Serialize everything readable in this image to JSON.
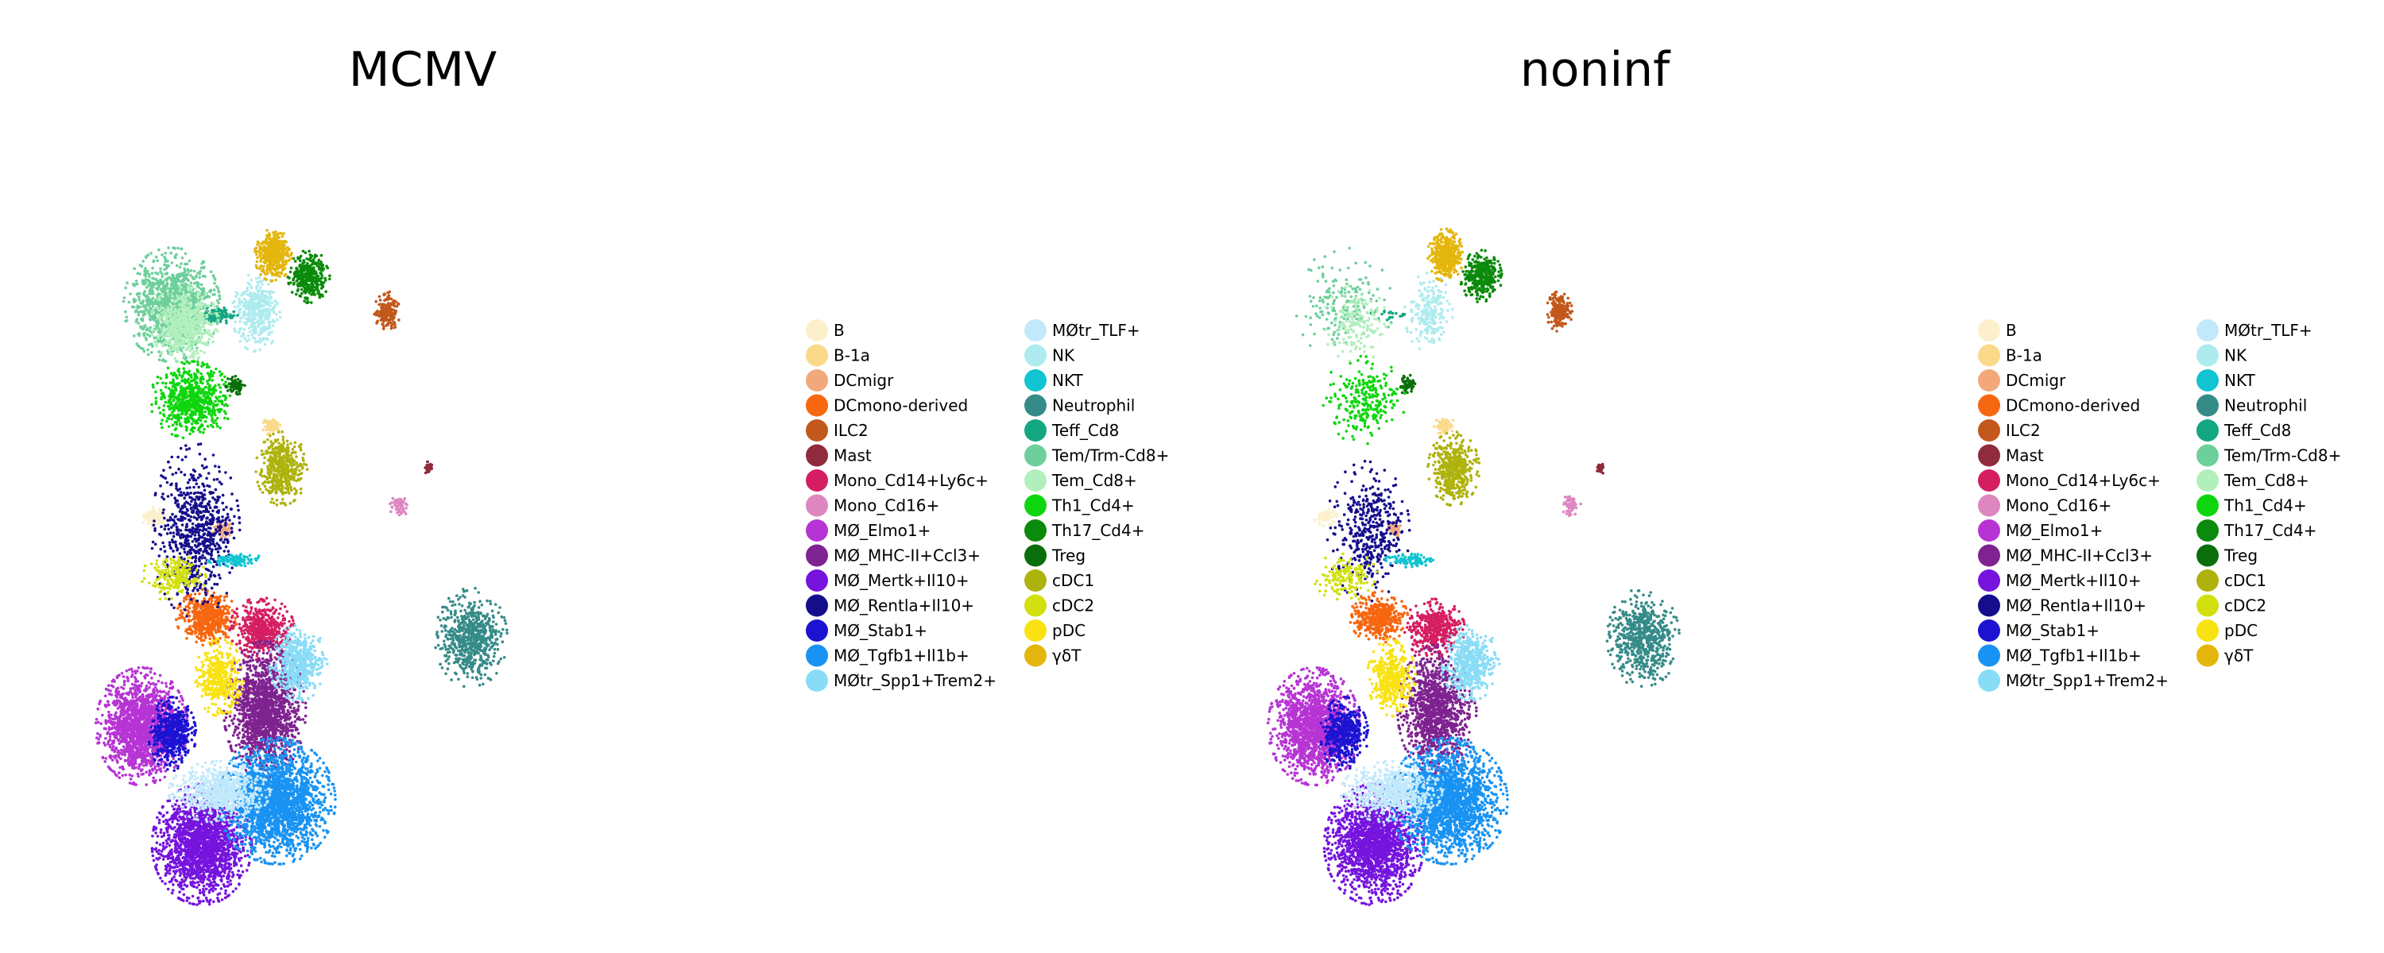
{
  "chart_data": {
    "type": "scatter",
    "panels": [
      {
        "title": "MCMV",
        "clusters": [
          {
            "name": "B",
            "cx": 0.108,
            "cy": 0.512,
            "rx": 0.018,
            "ry": 0.012,
            "n": 90
          },
          {
            "name": "B-1a",
            "cx": 0.276,
            "cy": 0.392,
            "rx": 0.013,
            "ry": 0.011,
            "n": 70
          },
          {
            "name": "DCmigr",
            "cx": 0.204,
            "cy": 0.528,
            "rx": 0.012,
            "ry": 0.01,
            "n": 80
          },
          {
            "name": "DCmono-derived",
            "cx": 0.182,
            "cy": 0.643,
            "rx": 0.038,
            "ry": 0.032,
            "n": 560
          },
          {
            "name": "ILC2",
            "cx": 0.44,
            "cy": 0.242,
            "rx": 0.016,
            "ry": 0.023,
            "n": 200
          },
          {
            "name": "Mast",
            "cx": 0.499,
            "cy": 0.447,
            "rx": 0.006,
            "ry": 0.007,
            "n": 30
          },
          {
            "name": "Mono_Cd14+Ly6c+",
            "cx": 0.261,
            "cy": 0.658,
            "rx": 0.04,
            "ry": 0.036,
            "n": 520
          },
          {
            "name": "Mono_Cd16+",
            "cx": 0.457,
            "cy": 0.496,
            "rx": 0.012,
            "ry": 0.014,
            "n": 60
          },
          {
            "name": "MØ_Elmo1+",
            "cx": 0.089,
            "cy": 0.786,
            "rx": 0.057,
            "ry": 0.067,
            "n": 1700
          },
          {
            "name": "MØ_MHC-II+Ccl3+",
            "cx": 0.265,
            "cy": 0.764,
            "rx": 0.051,
            "ry": 0.078,
            "n": 1500
          },
          {
            "name": "MØ_Mertk+Il10+",
            "cx": 0.175,
            "cy": 0.941,
            "rx": 0.062,
            "ry": 0.069,
            "n": 1900
          },
          {
            "name": "MØ_Rentla+Il10+",
            "cx": 0.166,
            "cy": 0.53,
            "rx": 0.055,
            "ry": 0.1,
            "n": 700
          },
          {
            "name": "MØ_Stab1+",
            "cx": 0.132,
            "cy": 0.796,
            "rx": 0.03,
            "ry": 0.042,
            "n": 520
          },
          {
            "name": "MØ_Tgfb1+Il1b+",
            "cx": 0.282,
            "cy": 0.884,
            "rx": 0.073,
            "ry": 0.072,
            "n": 2100
          },
          {
            "name": "MØtr_Spp1+Trem2+",
            "cx": 0.313,
            "cy": 0.703,
            "rx": 0.036,
            "ry": 0.043,
            "n": 520
          },
          {
            "name": "MØtr_TLF+",
            "cx": 0.2,
            "cy": 0.872,
            "rx": 0.063,
            "ry": 0.035,
            "n": 700
          },
          {
            "name": "NK",
            "cx": 0.253,
            "cy": 0.243,
            "rx": 0.03,
            "ry": 0.045,
            "n": 380
          },
          {
            "name": "NKT",
            "cx": 0.224,
            "cy": 0.568,
            "rx": 0.035,
            "ry": 0.008,
            "n": 110
          },
          {
            "name": "Neutrophil",
            "cx": 0.56,
            "cy": 0.67,
            "rx": 0.045,
            "ry": 0.057,
            "n": 650
          },
          {
            "name": "Teff_Cd8",
            "cx": 0.194,
            "cy": 0.247,
            "rx": 0.028,
            "ry": 0.01,
            "n": 110
          },
          {
            "name": "Tem/Trm-Cd8+",
            "cx": 0.132,
            "cy": 0.233,
            "rx": 0.06,
            "ry": 0.065,
            "n": 1100
          },
          {
            "name": "Tem_Cd8+",
            "cx": 0.15,
            "cy": 0.258,
            "rx": 0.042,
            "ry": 0.044,
            "n": 600
          },
          {
            "name": "Th1_Cd4+",
            "cx": 0.16,
            "cy": 0.358,
            "rx": 0.052,
            "ry": 0.044,
            "n": 700
          },
          {
            "name": "Th17_Cd4+",
            "cx": 0.328,
            "cy": 0.196,
            "rx": 0.026,
            "ry": 0.03,
            "n": 360
          },
          {
            "name": "Treg",
            "cx": 0.224,
            "cy": 0.338,
            "rx": 0.013,
            "ry": 0.011,
            "n": 80
          },
          {
            "name": "cDC1",
            "cx": 0.289,
            "cy": 0.448,
            "rx": 0.032,
            "ry": 0.042,
            "n": 480
          },
          {
            "name": "cDC2",
            "cx": 0.135,
            "cy": 0.59,
            "rx": 0.04,
            "ry": 0.028,
            "n": 200
          },
          {
            "name": "pDC",
            "cx": 0.2,
            "cy": 0.722,
            "rx": 0.03,
            "ry": 0.044,
            "n": 420
          },
          {
            "name": "γδT",
            "cx": 0.277,
            "cy": 0.168,
            "rx": 0.023,
            "ry": 0.03,
            "n": 420
          }
        ]
      },
      {
        "title": "noninf",
        "clusters": [
          {
            "name": "B",
            "cx": 0.108,
            "cy": 0.512,
            "rx": 0.016,
            "ry": 0.011,
            "n": 60
          },
          {
            "name": "B-1a",
            "cx": 0.276,
            "cy": 0.392,
            "rx": 0.013,
            "ry": 0.011,
            "n": 70
          },
          {
            "name": "DCmigr",
            "cx": 0.204,
            "cy": 0.528,
            "rx": 0.01,
            "ry": 0.009,
            "n": 60
          },
          {
            "name": "DCmono-derived",
            "cx": 0.182,
            "cy": 0.643,
            "rx": 0.036,
            "ry": 0.03,
            "n": 440
          },
          {
            "name": "ILC2",
            "cx": 0.44,
            "cy": 0.242,
            "rx": 0.016,
            "ry": 0.023,
            "n": 200
          },
          {
            "name": "Mast",
            "cx": 0.499,
            "cy": 0.447,
            "rx": 0.006,
            "ry": 0.007,
            "n": 30
          },
          {
            "name": "Mono_Cd14+Ly6c+",
            "cx": 0.261,
            "cy": 0.658,
            "rx": 0.038,
            "ry": 0.034,
            "n": 440
          },
          {
            "name": "Mono_Cd16+",
            "cx": 0.457,
            "cy": 0.496,
            "rx": 0.012,
            "ry": 0.014,
            "n": 60
          },
          {
            "name": "MØ_Elmo1+",
            "cx": 0.089,
            "cy": 0.786,
            "rx": 0.057,
            "ry": 0.067,
            "n": 1600
          },
          {
            "name": "MØ_MHC-II+Ccl3+",
            "cx": 0.265,
            "cy": 0.764,
            "rx": 0.049,
            "ry": 0.074,
            "n": 1200
          },
          {
            "name": "MØ_Mertk+Il10+",
            "cx": 0.175,
            "cy": 0.941,
            "rx": 0.062,
            "ry": 0.069,
            "n": 1800
          },
          {
            "name": "MØ_Rentla+Il10+",
            "cx": 0.166,
            "cy": 0.53,
            "rx": 0.052,
            "ry": 0.08,
            "n": 420
          },
          {
            "name": "MØ_Stab1+",
            "cx": 0.132,
            "cy": 0.796,
            "rx": 0.03,
            "ry": 0.042,
            "n": 480
          },
          {
            "name": "MØ_Tgfb1+Il1b+",
            "cx": 0.282,
            "cy": 0.884,
            "rx": 0.073,
            "ry": 0.072,
            "n": 2000
          },
          {
            "name": "MØtr_Spp1+Trem2+",
            "cx": 0.313,
            "cy": 0.703,
            "rx": 0.036,
            "ry": 0.043,
            "n": 500
          },
          {
            "name": "MØtr_TLF+",
            "cx": 0.2,
            "cy": 0.872,
            "rx": 0.063,
            "ry": 0.035,
            "n": 650
          },
          {
            "name": "NK",
            "cx": 0.253,
            "cy": 0.243,
            "rx": 0.03,
            "ry": 0.045,
            "n": 220
          },
          {
            "name": "NKT",
            "cx": 0.224,
            "cy": 0.568,
            "rx": 0.032,
            "ry": 0.008,
            "n": 90
          },
          {
            "name": "Neutrophil",
            "cx": 0.56,
            "cy": 0.67,
            "rx": 0.045,
            "ry": 0.057,
            "n": 650
          },
          {
            "name": "Teff_Cd8",
            "cx": 0.194,
            "cy": 0.247,
            "rx": 0.028,
            "ry": 0.01,
            "n": 20
          },
          {
            "name": "Tem/Trm-Cd8+",
            "cx": 0.132,
            "cy": 0.233,
            "rx": 0.06,
            "ry": 0.065,
            "n": 180
          },
          {
            "name": "Tem_Cd8+",
            "cx": 0.15,
            "cy": 0.258,
            "rx": 0.042,
            "ry": 0.044,
            "n": 160
          },
          {
            "name": "Th1_Cd4+",
            "cx": 0.16,
            "cy": 0.358,
            "rx": 0.052,
            "ry": 0.05,
            "n": 260
          },
          {
            "name": "Th17_Cd4+",
            "cx": 0.328,
            "cy": 0.196,
            "rx": 0.026,
            "ry": 0.03,
            "n": 360
          },
          {
            "name": "Treg",
            "cx": 0.224,
            "cy": 0.338,
            "rx": 0.013,
            "ry": 0.011,
            "n": 50
          },
          {
            "name": "cDC1",
            "cx": 0.289,
            "cy": 0.448,
            "rx": 0.032,
            "ry": 0.042,
            "n": 480
          },
          {
            "name": "cDC2",
            "cx": 0.135,
            "cy": 0.59,
            "rx": 0.04,
            "ry": 0.028,
            "n": 160
          },
          {
            "name": "pDC",
            "cx": 0.2,
            "cy": 0.722,
            "rx": 0.03,
            "ry": 0.044,
            "n": 400
          },
          {
            "name": "γδT",
            "cx": 0.277,
            "cy": 0.168,
            "rx": 0.023,
            "ry": 0.03,
            "n": 420
          }
        ]
      }
    ],
    "legend": [
      {
        "name": "B",
        "color": "#fcefcb"
      },
      {
        "name": "B-1a",
        "color": "#fbd98a"
      },
      {
        "name": "DCmigr",
        "color": "#f2a87a"
      },
      {
        "name": "DCmono-derived",
        "color": "#f76710"
      },
      {
        "name": "ILC2",
        "color": "#c2581c"
      },
      {
        "name": "Mast",
        "color": "#8f2b3c"
      },
      {
        "name": "Mono_Cd14+Ly6c+",
        "color": "#d51e62"
      },
      {
        "name": "Mono_Cd16+",
        "color": "#dd86c0"
      },
      {
        "name": "MØ_Elmo1+",
        "color": "#b734d4"
      },
      {
        "name": "MØ_MHC-II+Ccl3+",
        "color": "#7f2390"
      },
      {
        "name": "MØ_Mertk+Il10+",
        "color": "#7614de"
      },
      {
        "name": "MØ_Rentla+Il10+",
        "color": "#150e8c"
      },
      {
        "name": "MØ_Stab1+",
        "color": "#1c13d2"
      },
      {
        "name": "MØ_Tgfb1+Il1b+",
        "color": "#1993f3"
      },
      {
        "name": "MØtr_Spp1+Trem2+",
        "color": "#88dcf6"
      },
      {
        "name": "MØtr_TLF+",
        "color": "#c2e9fb"
      },
      {
        "name": "NK",
        "color": "#aeebee"
      },
      {
        "name": "NKT",
        "color": "#10c4d1"
      },
      {
        "name": "Neutrophil",
        "color": "#358b88"
      },
      {
        "name": "Teff_Cd8",
        "color": "#12a780"
      },
      {
        "name": "Tem/Trm-Cd8+",
        "color": "#6dcf9b"
      },
      {
        "name": "Tem_Cd8+",
        "color": "#b1efbd"
      },
      {
        "name": "Th1_Cd4+",
        "color": "#0ed60e"
      },
      {
        "name": "Th17_Cd4+",
        "color": "#0b8a0b"
      },
      {
        "name": "Treg",
        "color": "#0a6f0a"
      },
      {
        "name": "cDC1",
        "color": "#aeb20c"
      },
      {
        "name": "cDC2",
        "color": "#d2e00f"
      },
      {
        "name": "pDC",
        "color": "#f8e211"
      },
      {
        "name": "γδT",
        "color": "#e4b60c"
      }
    ]
  }
}
